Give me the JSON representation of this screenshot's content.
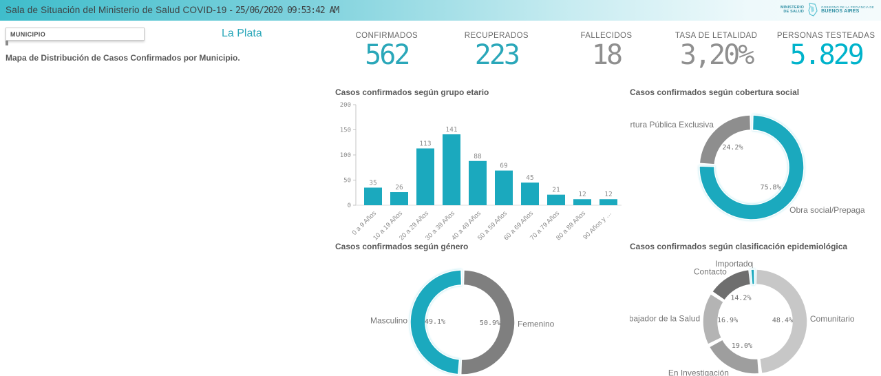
{
  "header": {
    "title_prefix": "Sala de Situación del Ministerio de Salud COVID-19 - ",
    "datetime": "25/06/2020 09:53:42 AM",
    "logo_ministry": "MINISTERIO DE SALUD",
    "logo_government": "GOBIERNO DE LA PROVINCIA DE",
    "logo_province": "BUENOS AIRES"
  },
  "filter": {
    "label": "MUNICIPIO",
    "selected_value": "La Plata"
  },
  "map_section": {
    "title": "Mapa de Distribución de Casos Confirmados por Municipio."
  },
  "colors": {
    "accent_teal": "#1ba9be",
    "kpi_teal": "#2aa7b9",
    "kpi_cyan": "#00b3cb",
    "kpi_gray": "#8f8f8f"
  },
  "kpis": [
    {
      "label": "CONFIRMADOS",
      "value": "562",
      "color": "#2aa7b9"
    },
    {
      "label": "RECUPERADOS",
      "value": "223",
      "color": "#2aa7b9"
    },
    {
      "label": "FALLECIDOS",
      "value": "18",
      "color": "#8f8f8f"
    },
    {
      "label": "TASA DE LETALIDAD",
      "value": "3,20%",
      "color": "#8f8f8f"
    },
    {
      "label": "PERSONAS TESTEADAS",
      "value": "5.829",
      "color": "#00b3cb"
    }
  ],
  "chart_data": [
    {
      "type": "bar",
      "title": "Casos confirmados según grupo etario",
      "categories": [
        "0 a 9 Años",
        "10 a 19 Años",
        "20 a 29 Años",
        "30 a 39 Años",
        "40 a 49 Años",
        "50 a 59 Años",
        "60 a 69 Años",
        "70 a 79 Años",
        "80 a 89 Años",
        "90 Años y …"
      ],
      "values": [
        35,
        26,
        113,
        141,
        88,
        69,
        45,
        21,
        12,
        12
      ],
      "ylim": [
        0,
        200
      ],
      "yticks": [
        0,
        50,
        100,
        150,
        200
      ],
      "bar_color": "#1ba9be",
      "grid": false,
      "value_labels": [
        "35",
        "26",
        "113",
        "141",
        "88",
        "69",
        "45",
        "21",
        "12",
        "12"
      ]
    },
    {
      "type": "donut",
      "title": "Casos confirmados según cobertura social",
      "slices": [
        {
          "label": "Obra social/Prepaga",
          "pct": 75.8,
          "pct_label": "75.8%",
          "color": "#1ba9be",
          "teal": true
        },
        {
          "label": "Cobertura Pública Exclusiva",
          "pct": 24.2,
          "pct_label": "24.2%",
          "color": "#8e8e8e"
        }
      ]
    },
    {
      "type": "donut",
      "title": "Casos confirmados según género",
      "slices": [
        {
          "label": "Femenino",
          "pct": 50.9,
          "pct_label": "50.9%",
          "color": "#7f7f7f"
        },
        {
          "label": "Masculino",
          "pct": 49.1,
          "pct_label": "49.1%",
          "color": "#1ba9be",
          "teal": true
        }
      ]
    },
    {
      "type": "donut",
      "title": "Casos confirmados según clasificación epidemiológica",
      "slices": [
        {
          "label": "Comunitario",
          "pct": 48.4,
          "pct_label": "48.4%",
          "color": "#c7c7c7"
        },
        {
          "label": "En Investigación",
          "pct": 19.0,
          "pct_label": "19.0%",
          "color": "#9e9e9e"
        },
        {
          "label": "Trabajador de la Salud",
          "pct": 16.9,
          "pct_label": "16.9%",
          "color": "#b4b4b4"
        },
        {
          "label": "Contacto",
          "pct": 14.2,
          "pct_label": "14.2%",
          "color": "#6e6e6e"
        },
        {
          "label": "Importado",
          "pct": 1.5,
          "pct_label": "",
          "color": "#1ba9be",
          "teal": true,
          "leader": true
        }
      ]
    }
  ]
}
